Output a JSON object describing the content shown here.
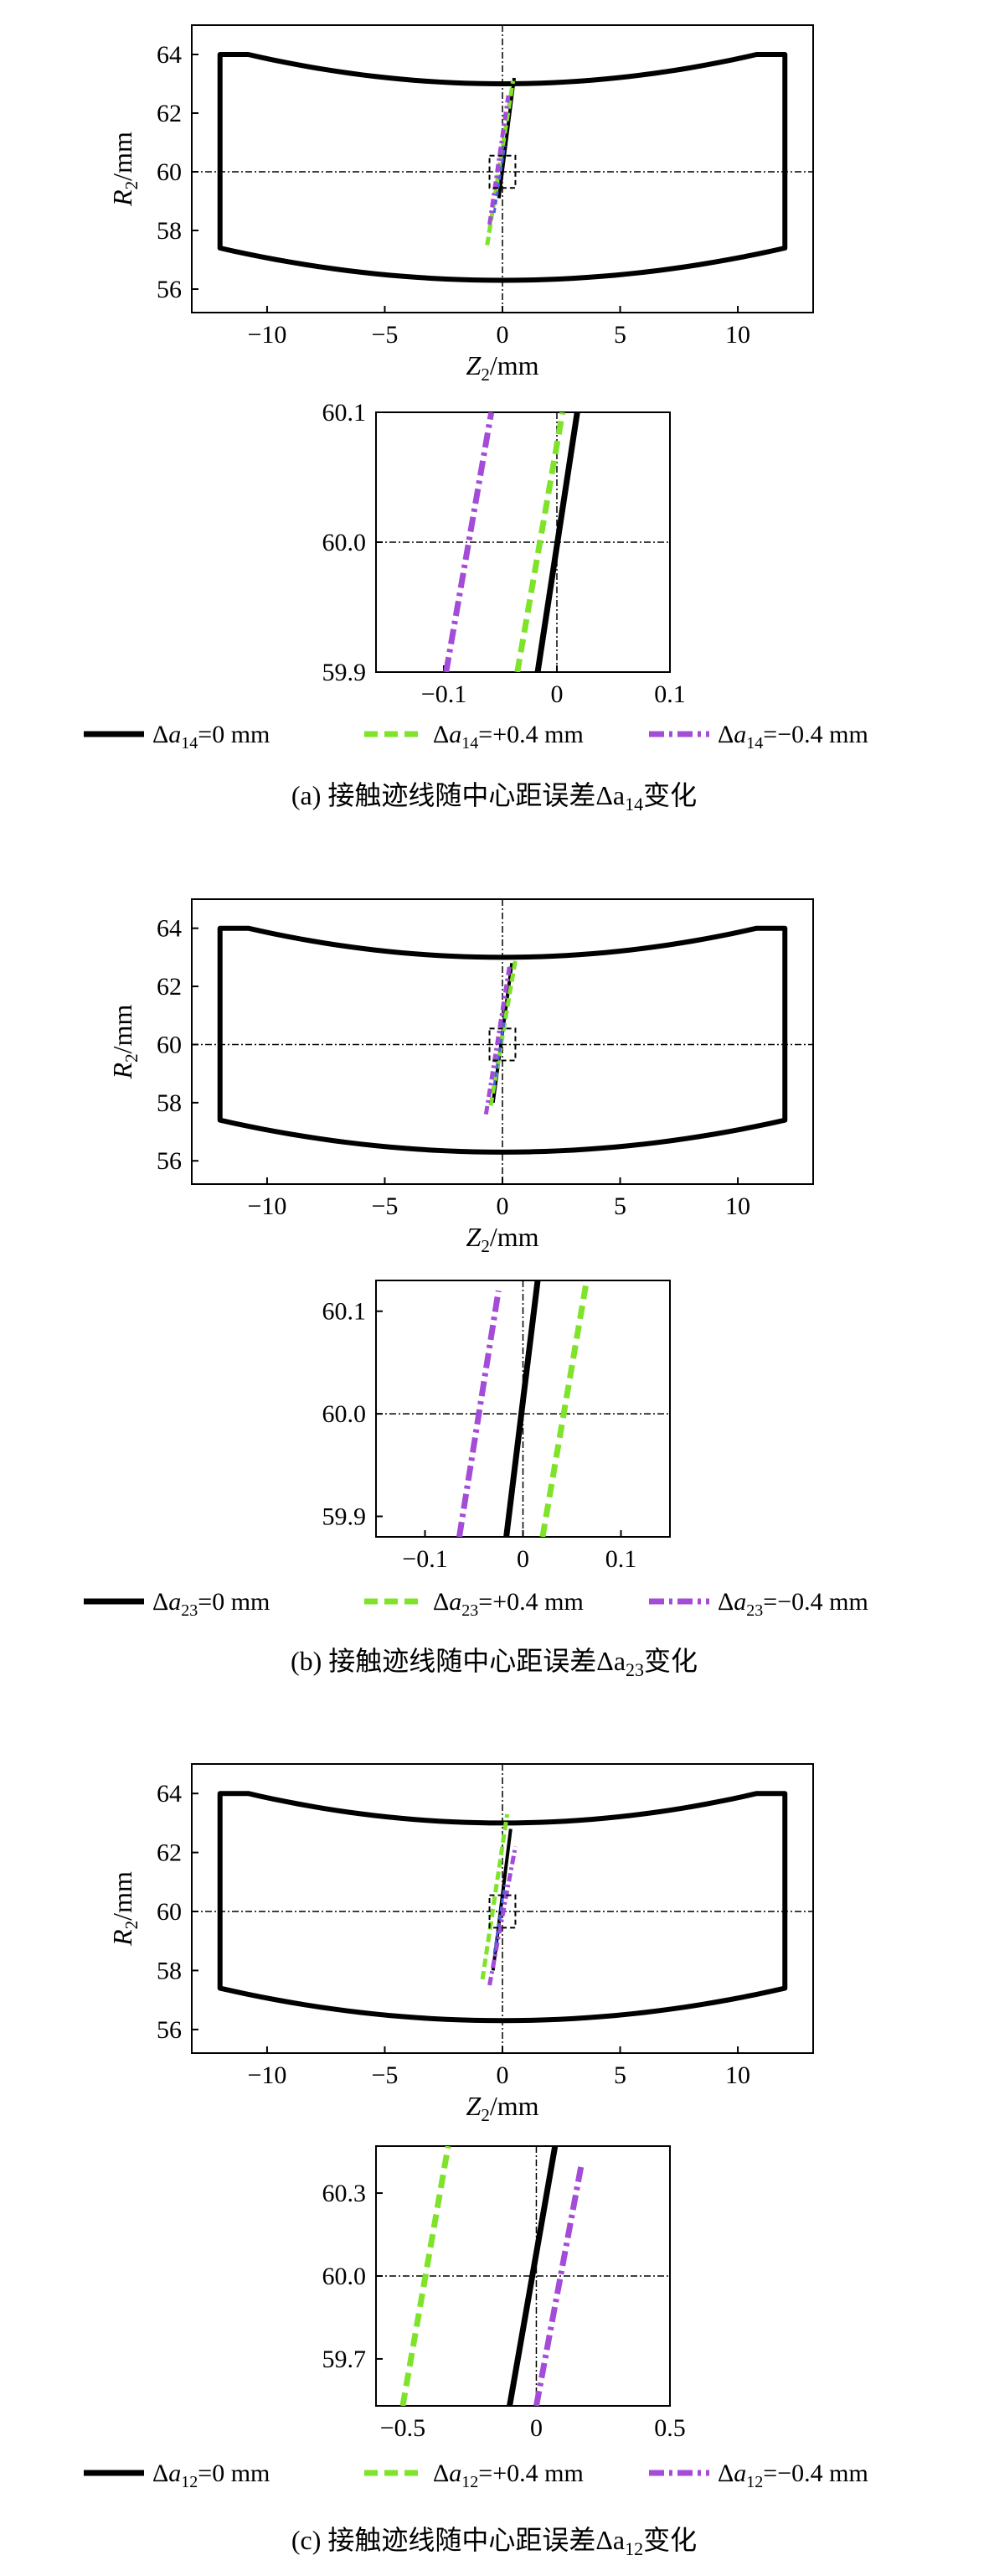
{
  "colors": {
    "black": "#000000",
    "green": "#7fe32a",
    "purple": "#a44bd8",
    "blue": "#4b5ee6",
    "axis": "#000000"
  },
  "chart_data": [
    {
      "type": "line",
      "panel": "a",
      "caption": "(a) 接触迹线随中心距误差Δa14变化",
      "sub": "14",
      "main": {
        "xlabel": "Z2/mm",
        "ylabel": "R2/mm",
        "xlim": [
          -13.2,
          13.2
        ],
        "ylim": [
          55.2,
          65.0
        ],
        "xticks": [
          "−10",
          "−5",
          "0",
          "5",
          "10"
        ],
        "yticks": [
          "56",
          "58",
          "60",
          "62",
          "64"
        ],
        "series": [
          {
            "values": [
              [
                -0.15,
                59.1
              ],
              [
                0.5,
                63.2
              ]
            ]
          },
          {
            "values": [
              [
                -0.65,
                57.5
              ],
              [
                0.45,
                63.1
              ]
            ]
          },
          {
            "values": [
              [
                -0.55,
                58.2
              ],
              [
                0.25,
                62.6
              ]
            ]
          }
        ]
      },
      "inset": {
        "xlim": [
          -0.16,
          0.1
        ],
        "ylim": [
          59.9,
          60.1
        ],
        "xticks": [
          "−0.1",
          "0",
          "0.1"
        ],
        "yticks": [
          "59.9",
          "60.0",
          "60.1"
        ],
        "series": [
          {
            "values": [
              [
                -0.017,
                59.9
              ],
              [
                0.018,
                60.1
              ]
            ]
          },
          {
            "values": [
              [
                -0.035,
                59.9
              ],
              [
                0.005,
                60.1
              ]
            ]
          },
          {
            "values": [
              [
                -0.098,
                59.9
              ],
              [
                -0.058,
                60.1
              ]
            ]
          }
        ]
      },
      "legend": [
        "Δa14=0 mm",
        "Δa14=+0.4 mm",
        "Δa14=−0.4 mm"
      ]
    },
    {
      "type": "line",
      "panel": "b",
      "caption": "(b) 接触迹线随中心距误差Δa23变化",
      "sub": "23",
      "main": {
        "xlabel": "Z2/mm",
        "ylabel": "R2/mm",
        "xlim": [
          -13.2,
          13.2
        ],
        "ylim": [
          55.2,
          65.0
        ],
        "xticks": [
          "−10",
          "−5",
          "0",
          "5",
          "10"
        ],
        "yticks": [
          "56",
          "58",
          "60",
          "62",
          "64"
        ],
        "series": [
          {
            "values": [
              [
                -0.4,
                58.0
              ],
              [
                0.4,
                62.8
              ]
            ]
          },
          {
            "values": [
              [
                -0.5,
                57.9
              ],
              [
                0.55,
                62.9
              ]
            ]
          },
          {
            "values": [
              [
                -0.7,
                57.6
              ],
              [
                0.3,
                62.7
              ]
            ]
          }
        ]
      },
      "inset": {
        "xlim": [
          -0.15,
          0.15
        ],
        "ylim": [
          59.88,
          60.13
        ],
        "xticks": [
          "−0.1",
          "0",
          "0.1"
        ],
        "yticks": [
          "59.9",
          "60.0",
          "60.1"
        ],
        "series": [
          {
            "values": [
              [
                -0.017,
                59.88
              ],
              [
                0.015,
                60.13
              ]
            ]
          },
          {
            "values": [
              [
                0.02,
                59.88
              ],
              [
                0.065,
                60.13
              ]
            ]
          },
          {
            "values": [
              [
                -0.065,
                59.88
              ],
              [
                -0.025,
                60.12
              ]
            ]
          }
        ]
      },
      "legend": [
        "Δa23=0 mm",
        "Δa23=+0.4 mm",
        "Δa23=−0.4 mm"
      ]
    },
    {
      "type": "line",
      "panel": "c",
      "caption": "(c) 接触迹线随中心距误差Δa12变化",
      "sub": "12",
      "main": {
        "xlabel": "Z2/mm",
        "ylabel": "R2/mm",
        "xlim": [
          -13.2,
          13.2
        ],
        "ylim": [
          55.2,
          65.0
        ],
        "xticks": [
          "−10",
          "−5",
          "0",
          "5",
          "10"
        ],
        "yticks": [
          "56",
          "58",
          "60",
          "62",
          "64"
        ],
        "series": [
          {
            "values": [
              [
                -0.4,
                58.0
              ],
              [
                0.35,
                62.8
              ]
            ]
          },
          {
            "values": [
              [
                -0.85,
                57.7
              ],
              [
                0.2,
                63.3
              ]
            ]
          },
          {
            "values": [
              [
                -0.55,
                57.5
              ],
              [
                0.55,
                62.2
              ]
            ]
          }
        ]
      },
      "inset": {
        "xlim": [
          -0.6,
          0.5
        ],
        "ylim": [
          59.53,
          60.47
        ],
        "xticks": [
          "−0.5",
          "0",
          "0.5"
        ],
        "yticks": [
          "59.7",
          "60.0",
          "60.3"
        ],
        "series": [
          {
            "values": [
              [
                -0.1,
                59.53
              ],
              [
                0.07,
                60.47
              ]
            ]
          },
          {
            "values": [
              [
                -0.5,
                59.53
              ],
              [
                -0.33,
                60.47
              ]
            ]
          },
          {
            "values": [
              [
                0.0,
                59.53
              ],
              [
                0.17,
                60.41
              ]
            ]
          }
        ]
      },
      "legend": [
        "Δa12=0 mm",
        "Δa12=+0.4 mm",
        "Δa12=−0.4 mm"
      ]
    }
  ]
}
